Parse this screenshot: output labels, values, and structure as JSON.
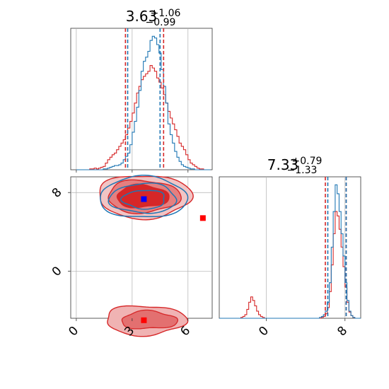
{
  "chart_data": {
    "type": "corner",
    "grid": true,
    "colors": {
      "series_a": "#1f77b4",
      "series_b": "#d62728",
      "marker_a": "#0000ff",
      "marker_b": "#ff0000"
    },
    "param1": {
      "title_main": "3.63",
      "title_plus": "+1.06",
      "title_minus": "−0.99",
      "xlim": [
        -0.3,
        7.3
      ],
      "ticks": [
        0,
        3,
        6
      ],
      "tick_labels": [
        "0",
        "3",
        "6"
      ],
      "quantiles_a": [
        2.76,
        3.63,
        4.5
      ],
      "quantiles_b": [
        2.64,
        3.63,
        4.69
      ],
      "hist_a_bins": [
        0.0,
        7.2
      ],
      "hist_a": [
        0,
        0,
        0,
        0,
        0,
        0,
        0,
        0,
        0,
        0,
        0,
        0,
        1,
        1,
        2,
        3,
        4,
        5,
        5,
        6,
        8,
        12,
        16,
        20,
        30,
        45,
        58,
        75,
        95,
        118,
        130,
        135,
        142,
        155,
        160,
        158,
        150,
        140,
        120,
        100,
        80,
        55,
        42,
        32,
        22,
        15,
        10,
        6,
        4,
        3,
        2,
        1,
        1,
        0,
        0,
        0,
        0,
        0,
        0,
        0
      ],
      "hist_b": [
        0,
        0,
        0,
        0,
        0,
        0,
        1,
        1,
        2,
        1,
        2,
        3,
        4,
        8,
        12,
        15,
        18,
        20,
        24,
        28,
        32,
        36,
        42,
        50,
        58,
        68,
        80,
        92,
        100,
        108,
        112,
        115,
        118,
        125,
        122,
        118,
        110,
        105,
        98,
        90,
        80,
        70,
        62,
        55,
        48,
        40,
        32,
        28,
        24,
        18,
        12,
        8,
        6,
        4,
        2,
        1,
        1,
        0,
        0,
        0
      ]
    },
    "param2": {
      "title_main": "7.33",
      "title_plus": "+0.79",
      "title_minus": "−1.33",
      "range": [
        -4.8,
        9.6
      ],
      "ticks": [
        0,
        8
      ],
      "tick_labels": [
        "0",
        "8"
      ],
      "quantiles_a": [
        6.25,
        7.33,
        8.12
      ],
      "quantiles_b": [
        6.0,
        7.33,
        8.12
      ],
      "hist_a_bins": [
        -4.8,
        9.6
      ],
      "hist_a": [
        0,
        0,
        0,
        0,
        0,
        0,
        0,
        0,
        0,
        0,
        0,
        0,
        0,
        0,
        0,
        0,
        0,
        0,
        0,
        0,
        0,
        0,
        0,
        0,
        0,
        0,
        0,
        0,
        0,
        0,
        0,
        0,
        0,
        0,
        0,
        0,
        0,
        0,
        0,
        0,
        0,
        0,
        0,
        0,
        0,
        0,
        0,
        0,
        0,
        0,
        0,
        1,
        2,
        4,
        8,
        18,
        40,
        80,
        120,
        150,
        140,
        120,
        95,
        70,
        40,
        20,
        8,
        3,
        1,
        0,
        0,
        0
      ],
      "hist_b": [
        0,
        0,
        0,
        0,
        0,
        0,
        0,
        0,
        0,
        0,
        0,
        1,
        2,
        4,
        10,
        18,
        24,
        20,
        14,
        8,
        4,
        2,
        1,
        0,
        0,
        0,
        0,
        0,
        0,
        0,
        0,
        0,
        0,
        0,
        0,
        0,
        0,
        0,
        0,
        0,
        0,
        0,
        0,
        0,
        0,
        0,
        0,
        0,
        0,
        0,
        0,
        0,
        1,
        2,
        5,
        12,
        30,
        60,
        95,
        120,
        115,
        100,
        80,
        58,
        35,
        18,
        7,
        3,
        1,
        0,
        0,
        0
      ]
    },
    "joint": {
      "series_a_peak": [
        3.6,
        7.5
      ],
      "series_b_peaks": [
        [
          3.6,
          7.6
        ],
        [
          3.6,
          -5.0
        ]
      ],
      "markers": [
        {
          "color": "marker_a",
          "x": 3.63,
          "y": 7.33
        },
        {
          "color": "marker_b",
          "x": 6.8,
          "y": 5.4
        },
        {
          "color": "marker_b",
          "x": 3.63,
          "y": -5.0
        }
      ]
    }
  }
}
